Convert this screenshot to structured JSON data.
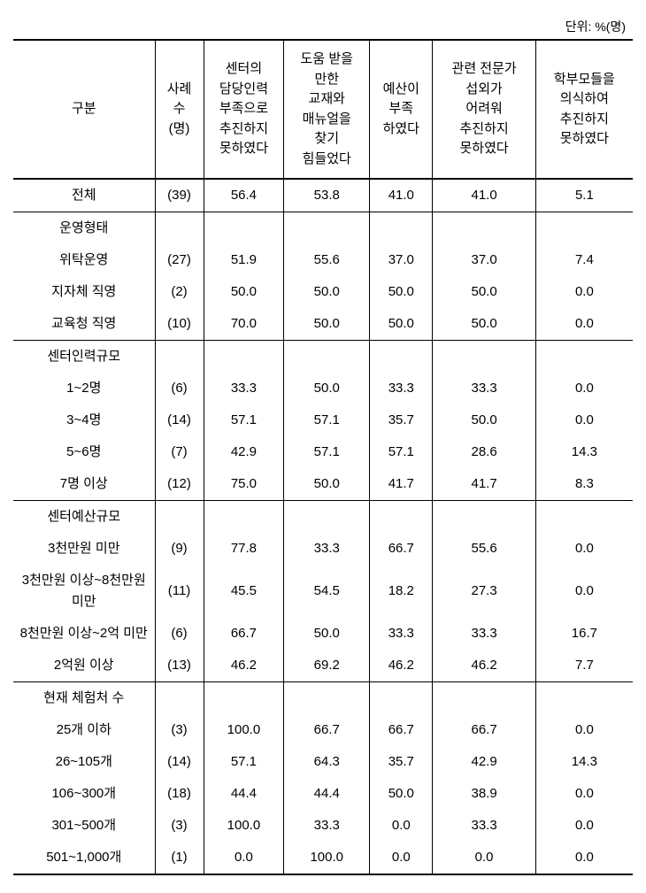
{
  "unit": "단위: %(명)",
  "headers": {
    "category": "구분",
    "cases": "사례\n수\n(명)",
    "col1": "센터의\n담당인력\n부족으로\n추진하지\n못하였다",
    "col2": "도움 받을\n만한\n교재와\n매뉴얼을\n찾기\n힘들었다",
    "col3": "예산이\n부족\n하였다",
    "col4": "관련 전문가\n섭외가\n어려워\n추진하지\n못하였다",
    "col5": "학부모들을\n의식하여\n추진하지\n못하였다"
  },
  "rows": [
    {
      "label": "전체",
      "cases": "(39)",
      "v1": "56.4",
      "v2": "53.8",
      "v3": "41.0",
      "v4": "41.0",
      "v5": "5.1",
      "divider": true
    },
    {
      "label": "운영형태",
      "cases": "",
      "v1": "",
      "v2": "",
      "v3": "",
      "v4": "",
      "v5": ""
    },
    {
      "label": "위탁운영",
      "cases": "(27)",
      "v1": "51.9",
      "v2": "55.6",
      "v3": "37.0",
      "v4": "37.0",
      "v5": "7.4"
    },
    {
      "label": "지자체 직영",
      "cases": "(2)",
      "v1": "50.0",
      "v2": "50.0",
      "v3": "50.0",
      "v4": "50.0",
      "v5": "0.0"
    },
    {
      "label": "교육청 직영",
      "cases": "(10)",
      "v1": "70.0",
      "v2": "50.0",
      "v3": "50.0",
      "v4": "50.0",
      "v5": "0.0",
      "divider": true
    },
    {
      "label": "센터인력규모",
      "cases": "",
      "v1": "",
      "v2": "",
      "v3": "",
      "v4": "",
      "v5": ""
    },
    {
      "label": "1~2명",
      "cases": "(6)",
      "v1": "33.3",
      "v2": "50.0",
      "v3": "33.3",
      "v4": "33.3",
      "v5": "0.0"
    },
    {
      "label": "3~4명",
      "cases": "(14)",
      "v1": "57.1",
      "v2": "57.1",
      "v3": "35.7",
      "v4": "50.0",
      "v5": "0.0"
    },
    {
      "label": "5~6명",
      "cases": "(7)",
      "v1": "42.9",
      "v2": "57.1",
      "v3": "57.1",
      "v4": "28.6",
      "v5": "14.3"
    },
    {
      "label": "7명 이상",
      "cases": "(12)",
      "v1": "75.0",
      "v2": "50.0",
      "v3": "41.7",
      "v4": "41.7",
      "v5": "8.3",
      "divider": true
    },
    {
      "label": "센터예산규모",
      "cases": "",
      "v1": "",
      "v2": "",
      "v3": "",
      "v4": "",
      "v5": ""
    },
    {
      "label": "3천만원 미만",
      "cases": "(9)",
      "v1": "77.8",
      "v2": "33.3",
      "v3": "66.7",
      "v4": "55.6",
      "v5": "0.0"
    },
    {
      "label": "3천만원 이상~8천만원 미만",
      "cases": "(11)",
      "v1": "45.5",
      "v2": "54.5",
      "v3": "18.2",
      "v4": "27.3",
      "v5": "0.0"
    },
    {
      "label": "8천만원 이상~2억 미만",
      "cases": "(6)",
      "v1": "66.7",
      "v2": "50.0",
      "v3": "33.3",
      "v4": "33.3",
      "v5": "16.7"
    },
    {
      "label": "2억원 이상",
      "cases": "(13)",
      "v1": "46.2",
      "v2": "69.2",
      "v3": "46.2",
      "v4": "46.2",
      "v5": "7.7",
      "divider": true
    },
    {
      "label": "현재 체험처 수",
      "cases": "",
      "v1": "",
      "v2": "",
      "v3": "",
      "v4": "",
      "v5": ""
    },
    {
      "label": "25개 이하",
      "cases": "(3)",
      "v1": "100.0",
      "v2": "66.7",
      "v3": "66.7",
      "v4": "66.7",
      "v5": "0.0"
    },
    {
      "label": "26~105개",
      "cases": "(14)",
      "v1": "57.1",
      "v2": "64.3",
      "v3": "35.7",
      "v4": "42.9",
      "v5": "14.3"
    },
    {
      "label": "106~300개",
      "cases": "(18)",
      "v1": "44.4",
      "v2": "44.4",
      "v3": "50.0",
      "v4": "38.9",
      "v5": "0.0"
    },
    {
      "label": "301~500개",
      "cases": "(3)",
      "v1": "100.0",
      "v2": "33.3",
      "v3": "0.0",
      "v4": "33.3",
      "v5": "0.0"
    },
    {
      "label": "501~1,000개",
      "cases": "(1)",
      "v1": "0.0",
      "v2": "100.0",
      "v3": "0.0",
      "v4": "0.0",
      "v5": "0.0",
      "last": true
    }
  ]
}
